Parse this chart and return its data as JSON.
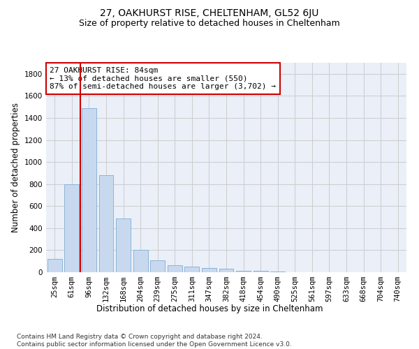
{
  "title": "27, OAKHURST RISE, CHELTENHAM, GL52 6JU",
  "subtitle": "Size of property relative to detached houses in Cheltenham",
  "xlabel": "Distribution of detached houses by size in Cheltenham",
  "ylabel": "Number of detached properties",
  "categories": [
    "25sqm",
    "61sqm",
    "96sqm",
    "132sqm",
    "168sqm",
    "204sqm",
    "239sqm",
    "275sqm",
    "311sqm",
    "347sqm",
    "382sqm",
    "418sqm",
    "454sqm",
    "490sqm",
    "525sqm",
    "561sqm",
    "597sqm",
    "633sqm",
    "668sqm",
    "704sqm",
    "740sqm"
  ],
  "values": [
    120,
    800,
    1490,
    880,
    490,
    205,
    105,
    65,
    50,
    35,
    30,
    15,
    10,
    5,
    3,
    3,
    3,
    3,
    3,
    3,
    3
  ],
  "bar_color": "#c8d9ef",
  "bar_edge_color": "#8ab4d8",
  "vline_x": 1.5,
  "annotation_text": "27 OAKHURST RISE: 84sqm\n← 13% of detached houses are smaller (550)\n87% of semi-detached houses are larger (3,702) →",
  "annotation_box_color": "#ffffff",
  "annotation_box_edge_color": "#cc0000",
  "vline_color": "#cc0000",
  "ylim": [
    0,
    1900
  ],
  "yticks": [
    0,
    200,
    400,
    600,
    800,
    1000,
    1200,
    1400,
    1600,
    1800
  ],
  "grid_color": "#cccccc",
  "background_color": "#eaeff8",
  "footer": "Contains HM Land Registry data © Crown copyright and database right 2024.\nContains public sector information licensed under the Open Government Licence v3.0.",
  "title_fontsize": 10,
  "subtitle_fontsize": 9,
  "axis_label_fontsize": 8.5,
  "tick_fontsize": 7.5,
  "annotation_fontsize": 8,
  "footer_fontsize": 6.5
}
